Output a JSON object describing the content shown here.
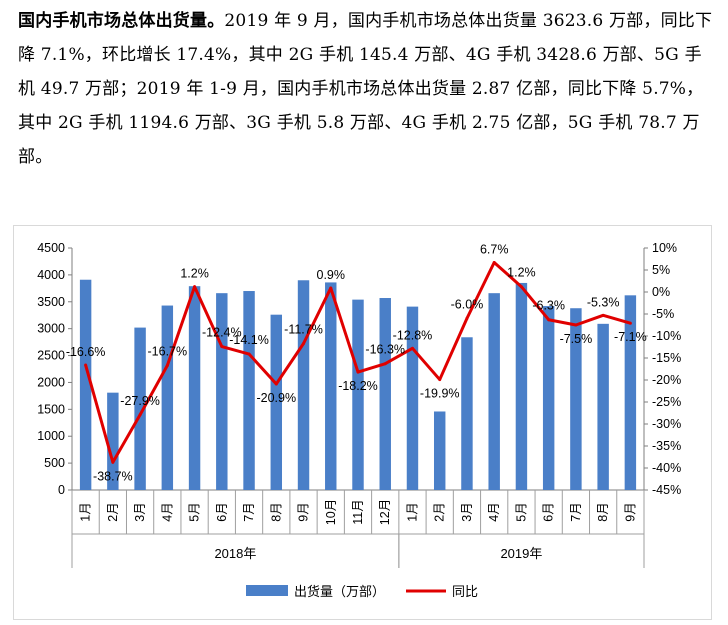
{
  "article": {
    "lead": "国内手机市场总体出货量。",
    "body": "2019 年 9 月，国内手机市场总体出货量 3623.6 万部，同比下降 7.1%，环比增长 17.4%，其中 2G 手机 145.4 万部、4G 手机 3428.6 万部、5G 手机 49.7 万部；2019 年 1-9 月，国内手机市场总体出货量 2.87 亿部，同比下降 5.7%，其中 2G 手机 1194.6 万部、3G 手机 5.8 万部、4G 手机 2.75 亿部，5G 手机 78.7 万部。"
  },
  "chart_data": {
    "type": "bar",
    "categories": [
      "1月",
      "2月",
      "3月",
      "4月",
      "5月",
      "6月",
      "7月",
      "8月",
      "9月",
      "10月",
      "11月",
      "12月",
      "1月",
      "2月",
      "3月",
      "4月",
      "5月",
      "6月",
      "7月",
      "8月",
      "9月"
    ],
    "groups": [
      {
        "label": "2018年",
        "start": 0,
        "count": 12
      },
      {
        "label": "2019年",
        "start": 12,
        "count": 9
      }
    ],
    "series": [
      {
        "name": "出货量（万部）",
        "type": "bar",
        "axis": "left",
        "color": "#4a7fc8",
        "values": [
          3910,
          1810,
          3020,
          3430,
          3790,
          3660,
          3700,
          3260,
          3900,
          3860,
          3540,
          3570,
          3410,
          1460,
          2840,
          3660,
          3850,
          3420,
          3380,
          3090,
          3620
        ]
      },
      {
        "name": "同比",
        "type": "line",
        "axis": "right",
        "color": "#e00000",
        "values": [
          -16.6,
          -38.7,
          -27.9,
          -16.7,
          1.2,
          -12.4,
          -14.1,
          -20.9,
          -11.7,
          0.9,
          -18.2,
          -16.3,
          -12.8,
          -19.9,
          -6.0,
          6.7,
          1.2,
          -6.3,
          -7.5,
          -5.3,
          -7.1
        ],
        "labels": [
          "-16.6%",
          "-38.7%",
          "-27.9%",
          "-16.7%",
          "1.2%",
          "-12.4%",
          "-14.1%",
          "-20.9%",
          "-11.7%",
          "0.9%",
          "-18.2%",
          "-16.3%",
          "-12.8%",
          "-19.9%",
          "-6.0%",
          "6.7%",
          "1.2%",
          "-6.3%",
          "-7.5%",
          "-5.3%",
          "-7.1%"
        ]
      }
    ],
    "y_left": {
      "min": 0,
      "max": 4500,
      "ticks": [
        "0",
        "500",
        "1000",
        "1500",
        "2000",
        "2500",
        "3000",
        "3500",
        "4000",
        "4500"
      ]
    },
    "y_right": {
      "min": -45,
      "max": 10,
      "ticks": [
        "-45%",
        "-40%",
        "-35%",
        "-30%",
        "-25%",
        "-20%",
        "-15%",
        "-10%",
        "-5%",
        "0%",
        "5%",
        "10%"
      ]
    },
    "legend_position": "bottom",
    "grid": false
  }
}
